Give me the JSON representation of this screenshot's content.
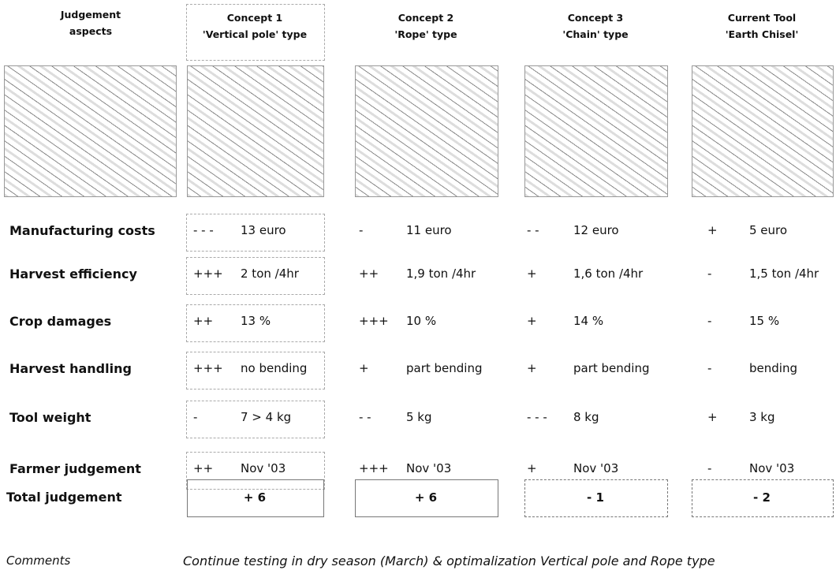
{
  "header": {
    "aspects": [
      "Judgement",
      "aspects"
    ],
    "columns": [
      {
        "name": "Concept 1",
        "type": "'Vertical pole' type"
      },
      {
        "name": "Concept 2",
        "type": "'Rope' type"
      },
      {
        "name": "Concept 3",
        "type": "'Chain' type"
      },
      {
        "name": "Current Tool",
        "type": "'Earth Chisel'"
      }
    ]
  },
  "rows": [
    {
      "label": "Manufacturing costs",
      "cells": [
        {
          "score": "- - -",
          "value": "13 euro"
        },
        {
          "score": "-",
          "value": "11 euro"
        },
        {
          "score": "- -",
          "value": "12 euro"
        },
        {
          "score": "+",
          "value": "5 euro"
        }
      ]
    },
    {
      "label": "Harvest efficiency",
      "cells": [
        {
          "score": "+++",
          "value": "2 ton /4hr"
        },
        {
          "score": "++",
          "value": "1,9 ton /4hr"
        },
        {
          "score": "+",
          "value": "1,6 ton /4hr"
        },
        {
          "score": "-",
          "value": "1,5 ton /4hr"
        }
      ]
    },
    {
      "label": "Crop damages",
      "cells": [
        {
          "score": "++",
          "value": "13 %"
        },
        {
          "score": "+++",
          "value": "10 %"
        },
        {
          "score": "+",
          "value": "14 %"
        },
        {
          "score": "-",
          "value": "15 %"
        }
      ]
    },
    {
      "label": "Harvest handling",
      "cells": [
        {
          "score": "+++",
          "value": "no bending"
        },
        {
          "score": "+",
          "value": "part bending"
        },
        {
          "score": "+",
          "value": "part bending"
        },
        {
          "score": "-",
          "value": "bending"
        }
      ]
    },
    {
      "label": "Tool weight",
      "cells": [
        {
          "score": "-",
          "value": "7 > 4 kg"
        },
        {
          "score": "- -",
          "value": "5 kg"
        },
        {
          "score": "- - -",
          "value": "8 kg"
        },
        {
          "score": "+",
          "value": "3 kg"
        }
      ]
    },
    {
      "label": "Farmer judgement",
      "cells": [
        {
          "score": "++",
          "value": "Nov '03"
        },
        {
          "score": "+++",
          "value": "Nov '03"
        },
        {
          "score": "+",
          "value": "Nov '03"
        },
        {
          "score": "-",
          "value": "Nov '03"
        }
      ]
    }
  ],
  "total": {
    "label": "Total judgement",
    "cells": [
      "+ 6",
      "+ 6",
      "- 1",
      "- 2"
    ]
  },
  "comments": {
    "label": "Comments",
    "text": "Continue testing in dry season (March) & optimalization Vertical pole and Rope type"
  }
}
